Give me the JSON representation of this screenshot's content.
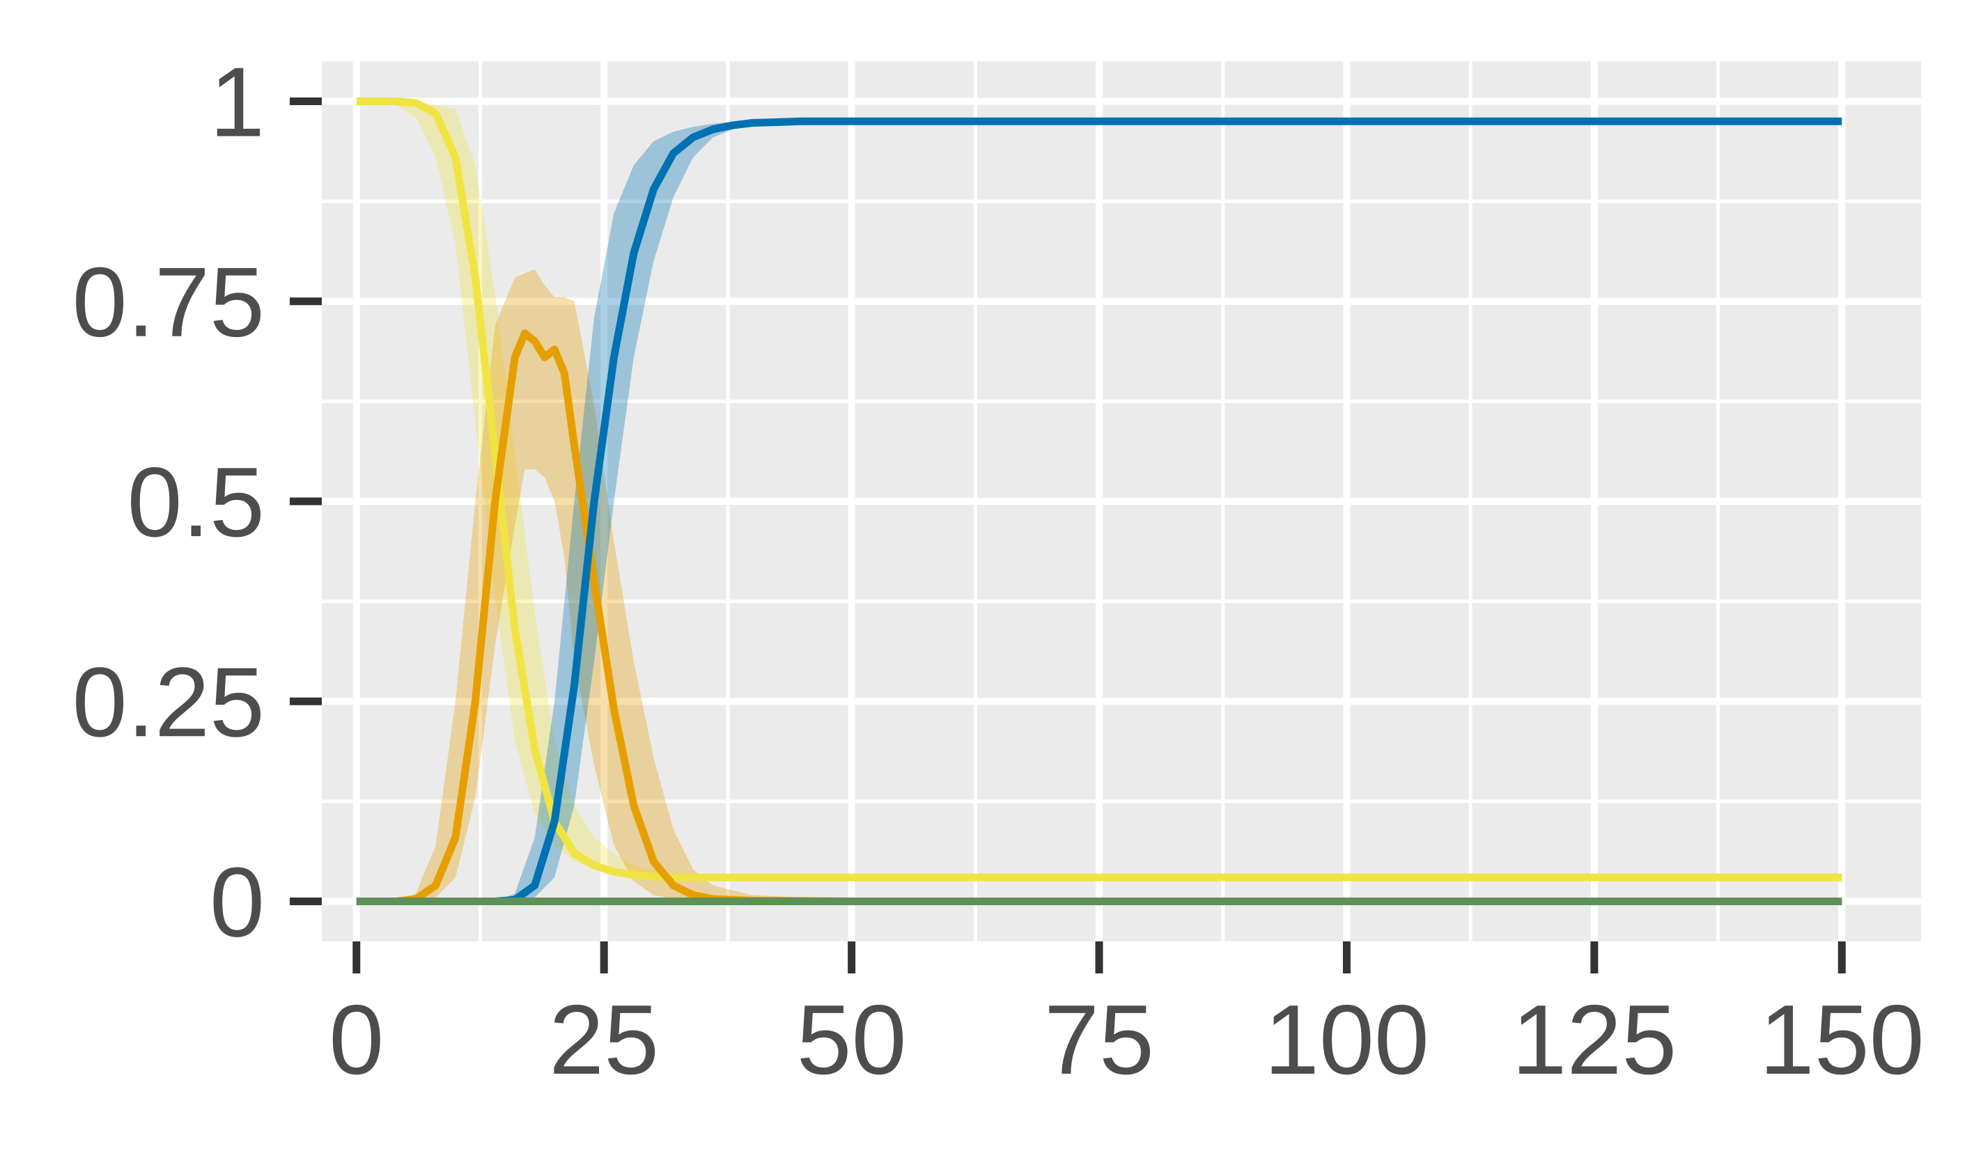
{
  "chart_data": {
    "type": "line",
    "title": "",
    "xlabel": "",
    "ylabel": "",
    "xlim": [
      -3.5,
      158
    ],
    "ylim": [
      -0.05,
      1.05
    ],
    "x_ticks": [
      0,
      25,
      50,
      75,
      100,
      125,
      150
    ],
    "x_tick_labels": [
      "0",
      "25",
      "50",
      "75",
      "100",
      "125",
      "150"
    ],
    "y_ticks": [
      0,
      0.25,
      0.5,
      0.75,
      1
    ],
    "y_tick_labels": [
      "0",
      "0.25",
      "0.5",
      "0.75",
      "1"
    ],
    "grid": true,
    "legend": "none",
    "colors": {
      "panel_background": "#ebebeb",
      "grid_line": "#ffffff",
      "tick_mark": "#333333",
      "tick_text": "#4d4d4d"
    },
    "series": [
      {
        "color": "#f0e442",
        "x": [
          0,
          2,
          4,
          6,
          8,
          10,
          12,
          14,
          16,
          18,
          20,
          22,
          24,
          26,
          28,
          30,
          32,
          35,
          40,
          50,
          75,
          100,
          125,
          150
        ],
        "values": [
          1.0,
          1.0,
          1.0,
          0.998,
          0.985,
          0.93,
          0.78,
          0.56,
          0.34,
          0.19,
          0.1,
          0.06,
          0.045,
          0.037,
          0.033,
          0.031,
          0.03,
          0.03,
          0.03,
          0.03,
          0.03,
          0.03,
          0.03,
          0.03
        ],
        "lower": [
          1.0,
          1.0,
          0.995,
          0.98,
          0.93,
          0.82,
          0.6,
          0.38,
          0.2,
          0.11,
          0.07,
          0.05,
          0.04,
          0.034,
          0.031,
          0.03,
          0.03,
          0.03,
          0.03,
          0.03,
          0.03,
          0.03,
          0.03,
          0.03
        ],
        "upper": [
          1.0,
          1.0,
          1.0,
          1.0,
          0.995,
          0.99,
          0.92,
          0.76,
          0.56,
          0.36,
          0.2,
          0.12,
          0.08,
          0.06,
          0.045,
          0.038,
          0.034,
          0.032,
          0.03,
          0.03,
          0.03,
          0.03,
          0.03,
          0.03
        ]
      },
      {
        "color": "#e69f00",
        "x": [
          0,
          4,
          6,
          8,
          10,
          12,
          14,
          16,
          17,
          18,
          19,
          20,
          21,
          22,
          24,
          26,
          28,
          30,
          32,
          34,
          36,
          40,
          50,
          75,
          100,
          125,
          150
        ],
        "values": [
          0.0,
          0.0,
          0.003,
          0.02,
          0.08,
          0.25,
          0.5,
          0.68,
          0.71,
          0.7,
          0.68,
          0.69,
          0.66,
          0.57,
          0.4,
          0.24,
          0.12,
          0.05,
          0.02,
          0.008,
          0.003,
          0.001,
          0.0,
          0.0,
          0.0,
          0.0,
          0.0
        ],
        "lower": [
          0.0,
          0.0,
          0.0,
          0.005,
          0.03,
          0.13,
          0.32,
          0.47,
          0.54,
          0.54,
          0.53,
          0.5,
          0.43,
          0.3,
          0.17,
          0.07,
          0.025,
          0.008,
          0.003,
          0.001,
          0.0,
          0.0,
          0.0,
          0.0,
          0.0,
          0.0,
          0.0
        ],
        "upper": [
          0.0,
          0.0,
          0.01,
          0.07,
          0.25,
          0.5,
          0.72,
          0.78,
          0.785,
          0.79,
          0.77,
          0.755,
          0.755,
          0.75,
          0.62,
          0.45,
          0.3,
          0.18,
          0.09,
          0.04,
          0.02,
          0.008,
          0.002,
          0.0,
          0.0,
          0.0,
          0.0
        ]
      },
      {
        "color": "#0072b2",
        "x": [
          0,
          10,
          14,
          16,
          18,
          20,
          22,
          24,
          26,
          28,
          30,
          32,
          34,
          36,
          38,
          40,
          45,
          50,
          75,
          100,
          125,
          150
        ],
        "values": [
          0.0,
          0.0,
          0.0,
          0.002,
          0.02,
          0.1,
          0.27,
          0.5,
          0.68,
          0.81,
          0.89,
          0.935,
          0.955,
          0.965,
          0.97,
          0.973,
          0.975,
          0.975,
          0.975,
          0.975,
          0.975,
          0.975
        ],
        "lower": [
          0.0,
          0.0,
          0.0,
          0.0,
          0.005,
          0.03,
          0.12,
          0.3,
          0.5,
          0.68,
          0.8,
          0.88,
          0.93,
          0.955,
          0.965,
          0.97,
          0.975,
          0.975,
          0.975,
          0.975,
          0.975,
          0.975
        ],
        "upper": [
          0.0,
          0.0,
          0.0,
          0.01,
          0.08,
          0.25,
          0.5,
          0.73,
          0.86,
          0.92,
          0.95,
          0.962,
          0.968,
          0.972,
          0.974,
          0.975,
          0.975,
          0.975,
          0.975,
          0.975,
          0.975,
          0.975
        ]
      },
      {
        "color": "#5c9158",
        "x": [
          0,
          150
        ],
        "values": [
          0.0,
          0.0
        ]
      }
    ]
  }
}
